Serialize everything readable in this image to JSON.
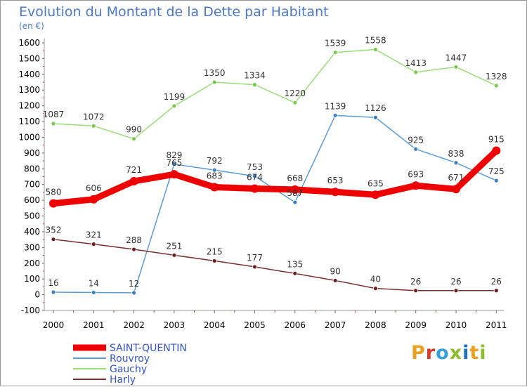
{
  "title": "Evolution du Montant de la Dette par Habitant",
  "subtitle": "(en €)",
  "brand": {
    "text": "Proxiti",
    "colors": [
      "#e8a020",
      "#d63b2f",
      "#38a0d8",
      "#8dbd2c",
      "#2070c0",
      "#e8a020",
      "#8dbd2c"
    ]
  },
  "chart_data": {
    "type": "line",
    "title": "Evolution du Montant de la Dette par Habitant",
    "subtitle": "(en €)",
    "x": [
      "2000",
      "2001",
      "2002",
      "2003",
      "2004",
      "2005",
      "2006",
      "2007",
      "2008",
      "2009",
      "2010",
      "2011"
    ],
    "ylim": [
      -100,
      1600
    ],
    "yticks": [
      -100,
      0,
      100,
      200,
      300,
      400,
      500,
      600,
      700,
      800,
      900,
      1000,
      1100,
      1200,
      1300,
      1400,
      1500,
      1600
    ],
    "grid": false,
    "legend_position": "bottom-left",
    "series": [
      {
        "name": "Rouvroy",
        "color": "#5b9bd5",
        "point_color": "#3a7fc0",
        "emphasis": false,
        "values": [
          16,
          14,
          12,
          829,
          792,
          753,
          587,
          1139,
          1126,
          925,
          838,
          725
        ],
        "labels": [
          "16",
          "14",
          "12",
          "829",
          "792",
          "753",
          "587",
          "1139",
          "1126",
          "925",
          "838",
          "725"
        ]
      },
      {
        "name": "Gauchy",
        "color": "#99dd77",
        "point_color": "#7cc84e",
        "emphasis": false,
        "values": [
          1087,
          1072,
          990,
          1199,
          1350,
          1334,
          1220,
          1539,
          1558,
          1413,
          1447,
          1328
        ],
        "labels": [
          "1087",
          "1072",
          "990",
          "1199",
          "1350",
          "1334",
          "1220",
          "1539",
          "1558",
          "1413",
          "1447",
          "1328"
        ]
      },
      {
        "name": "Harly",
        "color": "#7a3030",
        "point_color": "#6a2020",
        "emphasis": false,
        "values": [
          352,
          321,
          288,
          251,
          215,
          177,
          135,
          90,
          40,
          26,
          26,
          26
        ],
        "labels": [
          "352",
          "321",
          "288",
          "251",
          "215",
          "177",
          "135",
          "90",
          "40",
          "26",
          "26",
          "26"
        ]
      },
      {
        "name": "SAINT-QUENTIN",
        "color": "#ee0000",
        "point_color": "#ee0000",
        "emphasis": true,
        "values": [
          580,
          606,
          721,
          765,
          683,
          674,
          668,
          653,
          635,
          693,
          671,
          915
        ],
        "labels": [
          "580",
          "606",
          "721",
          "765",
          "683",
          "674",
          "668",
          "653",
          "635",
          "693",
          "671",
          "915"
        ]
      }
    ],
    "legend": [
      "SAINT-QUENTIN",
      "Rouvroy",
      "Gauchy",
      "Harly"
    ]
  }
}
